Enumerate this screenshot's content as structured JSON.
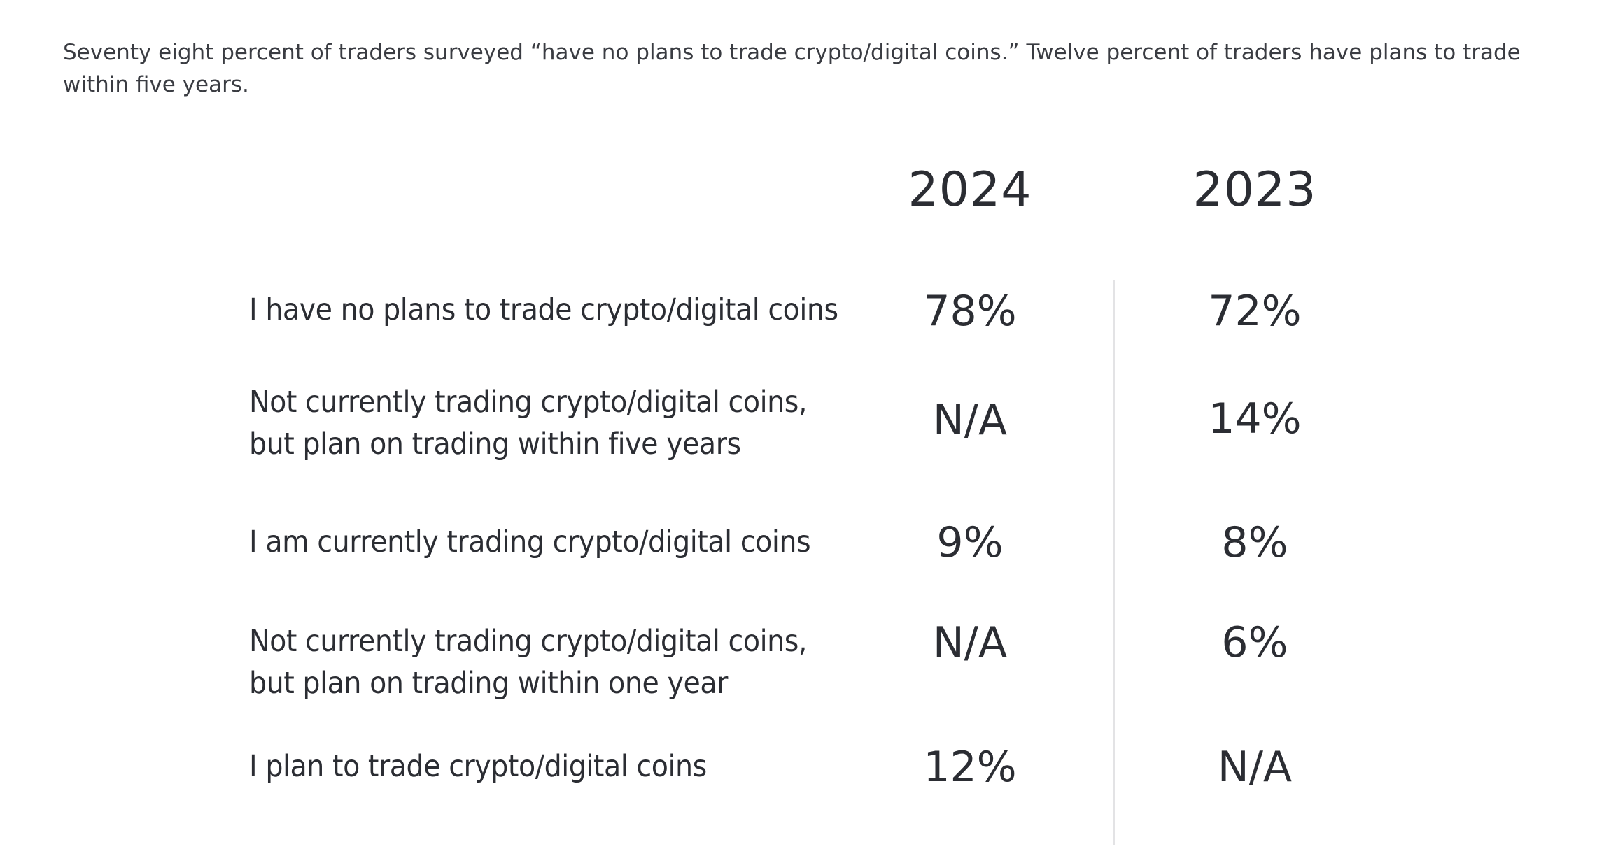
{
  "caption": "Seventy eight percent of traders surveyed “have no plans to trade crypto/digital coins.” Twelve percent of traders have plans to trade within five years.",
  "chart_data": {
    "type": "table",
    "columns": [
      "2024",
      "2023"
    ],
    "rows": [
      {
        "label_lines": [
          "I have no plans to trade crypto/digital coins"
        ],
        "values": [
          "78%",
          "72%"
        ]
      },
      {
        "label_lines": [
          "Not currently trading crypto/digital coins,",
          "but plan on trading within five years"
        ],
        "values": [
          "N/A",
          "14%"
        ]
      },
      {
        "label_lines": [
          "I am currently trading crypto/digital coins"
        ],
        "values": [
          "9%",
          "8%"
        ]
      },
      {
        "label_lines": [
          "Not currently trading crypto/digital coins,",
          "but plan on trading within one year"
        ],
        "values": [
          "N/A",
          "6%"
        ]
      },
      {
        "label_lines": [
          "I plan to trade crypto/digital coins"
        ],
        "values": [
          "12%",
          "N/A"
        ]
      }
    ]
  }
}
